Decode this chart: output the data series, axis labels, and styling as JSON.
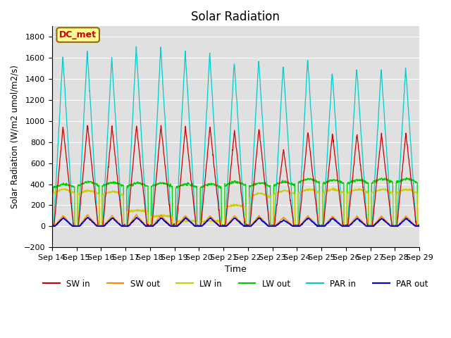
{
  "title": "Solar Radiation",
  "ylabel": "Solar Radiation (W/m2 umol/m2/s)",
  "xlabel": "Time",
  "ylim": [
    -200,
    1900
  ],
  "yticks": [
    -200,
    0,
    200,
    400,
    600,
    800,
    1000,
    1200,
    1400,
    1600,
    1800
  ],
  "x_labels": [
    "Sep 14",
    "Sep 15",
    "Sep 16",
    "Sep 17",
    "Sep 18",
    "Sep 19",
    "Sep 20",
    "Sep 21",
    "Sep 22",
    "Sep 23",
    "Sep 24",
    "Sep 25",
    "Sep 26",
    "Sep 27",
    "Sep 28",
    "Sep 29"
  ],
  "legend_label_colors": {
    "SW in": "#cc0000",
    "SW out": "#ff8800",
    "LW in": "#cccc00",
    "LW out": "#00cc00",
    "PAR in": "#00cccc",
    "PAR out": "#0000cc"
  },
  "annotation_text": "DC_met",
  "annotation_color": "#cc0000",
  "annotation_bg": "#ffff99",
  "background_color": "#e0e0e0",
  "grid_color": "#ffffff",
  "title_fontsize": 12,
  "sw_in_peaks": [
    950,
    970,
    950,
    960,
    955,
    950,
    945,
    910,
    930,
    730,
    900,
    880,
    880,
    880,
    880
  ],
  "sw_out_peaks": [
    100,
    110,
    100,
    110,
    105,
    100,
    100,
    100,
    100,
    85,
    100,
    95,
    95,
    95,
    95
  ],
  "par_in_peaks": [
    1620,
    1670,
    1600,
    1700,
    1700,
    1660,
    1645,
    1570,
    1580,
    1540,
    1590,
    1470,
    1510,
    1500,
    1510
  ],
  "lw_in_day": [
    350,
    340,
    330,
    150,
    100,
    50,
    50,
    200,
    310,
    340,
    350,
    350,
    350,
    350,
    350
  ],
  "lw_out_day": [
    400,
    420,
    415,
    410,
    410,
    400,
    400,
    420,
    410,
    420,
    450,
    440,
    440,
    450,
    450
  ],
  "par_out_peaks": [
    80,
    85,
    80,
    85,
    80,
    80,
    80,
    80,
    80,
    60,
    80,
    75,
    75,
    75,
    75
  ],
  "n_days": 15,
  "pts_per_day": 96
}
